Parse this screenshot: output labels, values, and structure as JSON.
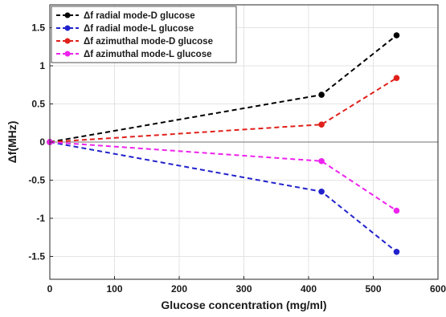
{
  "chart_data": {
    "type": "line",
    "title": "",
    "xlabel": "Glucose concentration (mg/ml)",
    "ylabel": "Δf(MHz)",
    "xlim": [
      0,
      600
    ],
    "ylim": [
      -1.8,
      1.8
    ],
    "xticks": [
      0,
      100,
      200,
      300,
      400,
      500,
      600
    ],
    "yticks": [
      -1.5,
      -1,
      -0.5,
      0,
      0.5,
      1,
      1.5
    ],
    "xtick_labels": [
      "0",
      "100",
      "200",
      "300",
      "400",
      "500",
      "600"
    ],
    "ytick_labels": [
      "-1.5",
      "-1",
      "-0.5",
      "0",
      "0.5",
      "1",
      "1.5"
    ],
    "grid": true,
    "zero_line": true,
    "legend_position": "top-left",
    "series": [
      {
        "name": "Δf radial mode-D glucose",
        "color": "#000000",
        "x": [
          0,
          420,
          536
        ],
        "y": [
          0,
          0.62,
          1.4
        ]
      },
      {
        "name": "Δf radial mode-L glucose",
        "color": "#2222cc",
        "x": [
          0,
          420,
          536
        ],
        "y": [
          0,
          -0.65,
          -1.44
        ]
      },
      {
        "name": "Δf azimuthal mode-D glucose",
        "color": "#e0201b",
        "x": [
          0,
          420,
          536
        ],
        "y": [
          0,
          0.23,
          0.84
        ]
      },
      {
        "name": "Δf azimuthal mode-L glucose",
        "color": "#ee22ee",
        "x": [
          0,
          420,
          536
        ],
        "y": [
          0,
          -0.25,
          -0.9
        ]
      }
    ]
  }
}
